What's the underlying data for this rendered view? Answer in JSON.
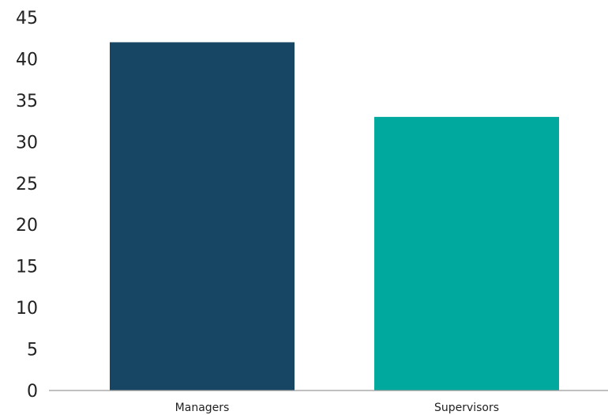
{
  "chart_data": {
    "type": "bar",
    "title": "",
    "xlabel": "",
    "ylabel": "",
    "categories": [
      "Managers",
      "Supervisors"
    ],
    "values": [
      42,
      33
    ],
    "colors": [
      "#164663",
      "#00a99d"
    ],
    "ylim": [
      0,
      45
    ],
    "yticks": [
      0,
      5,
      10,
      15,
      20,
      25,
      30,
      35,
      40,
      45
    ],
    "grid": false,
    "legend": "none"
  }
}
